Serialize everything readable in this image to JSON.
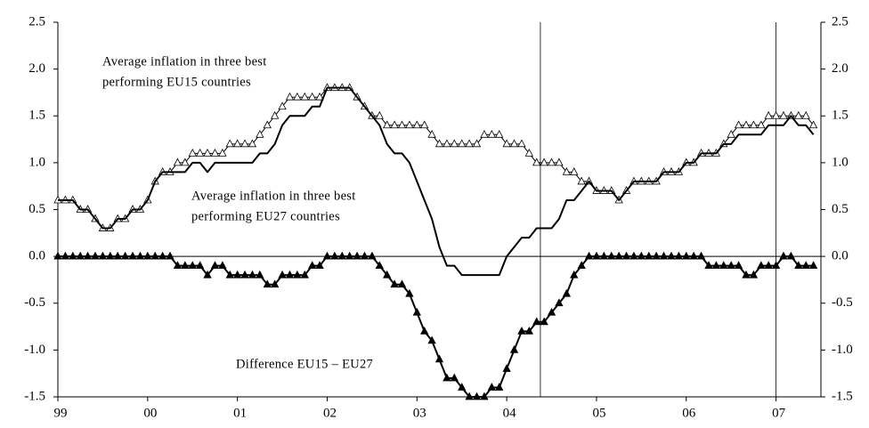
{
  "chart_data": {
    "type": "line",
    "x": [
      0,
      1,
      2,
      3,
      4,
      5,
      6,
      7,
      8,
      9,
      10,
      11,
      12,
      13,
      14,
      15,
      16,
      17,
      18,
      19,
      20,
      21,
      22,
      23,
      24,
      25,
      26,
      27,
      28,
      29,
      30,
      31,
      32,
      33,
      34,
      35,
      36,
      37,
      38,
      39,
      40,
      41,
      42,
      43,
      44,
      45,
      46,
      47,
      48,
      49,
      50,
      51,
      52,
      53,
      54,
      55,
      56,
      57,
      58,
      59,
      60,
      61,
      62,
      63,
      64,
      65,
      66,
      67,
      68,
      69,
      70,
      71,
      72,
      73,
      74,
      75,
      76,
      77,
      78,
      79,
      80,
      81,
      82,
      83,
      84,
      85,
      86,
      87,
      88,
      89,
      90,
      91,
      92,
      93,
      94,
      95,
      96,
      97,
      98,
      99,
      100,
      101
    ],
    "xlim": [
      0,
      102
    ],
    "xticks": [
      {
        "value": 0,
        "label": "99"
      },
      {
        "value": 12,
        "label": "00"
      },
      {
        "value": 24,
        "label": "01"
      },
      {
        "value": 36,
        "label": "02"
      },
      {
        "value": 48,
        "label": "03"
      },
      {
        "value": 60,
        "label": "04"
      },
      {
        "value": 72,
        "label": "05"
      },
      {
        "value": 84,
        "label": "06"
      },
      {
        "value": 96,
        "label": "07"
      }
    ],
    "ylim": [
      -1.5,
      2.5
    ],
    "yticks": [
      -1.5,
      {
        "value": -1,
        "label": "-1.0"
      },
      -0.5,
      {
        "value": 0,
        "label": "0.0"
      },
      0.5,
      {
        "value": 1,
        "label": "1.0"
      },
      1.5,
      {
        "value": 2,
        "label": "2.0"
      },
      2.5
    ],
    "y2lim": [
      -1.5,
      2.5
    ],
    "y2ticks": [
      -1.5,
      {
        "value": -1,
        "label": "-1.0"
      },
      -0.5,
      {
        "value": 0,
        "label": "0.0"
      },
      0.5,
      {
        "value": 1,
        "label": "1.0"
      },
      1.5,
      {
        "value": 2,
        "label": "2.0"
      },
      2.5
    ],
    "vlines": [
      64.5,
      96
    ],
    "series": [
      {
        "color": "#000000",
        "marker": "triangle-open",
        "width": 1,
        "values": [
          0.6,
          0.6,
          0.6,
          0.5,
          0.5,
          0.4,
          0.3,
          0.3,
          0.4,
          0.4,
          0.5,
          0.5,
          0.6,
          0.8,
          0.9,
          0.9,
          1.0,
          1.0,
          1.1,
          1.1,
          1.1,
          1.1,
          1.1,
          1.2,
          1.2,
          1.2,
          1.2,
          1.3,
          1.4,
          1.5,
          1.6,
          1.7,
          1.7,
          1.7,
          1.7,
          1.7,
          1.8,
          1.8,
          1.8,
          1.8,
          1.7,
          1.6,
          1.5,
          1.5,
          1.4,
          1.4,
          1.4,
          1.4,
          1.4,
          1.4,
          1.3,
          1.2,
          1.2,
          1.2,
          1.2,
          1.2,
          1.2,
          1.3,
          1.3,
          1.3,
          1.2,
          1.2,
          1.2,
          1.1,
          1.0,
          1.0,
          1.0,
          1.0,
          0.9,
          0.9,
          0.8,
          0.8,
          0.7,
          0.7,
          0.7,
          0.6,
          0.7,
          0.8,
          0.8,
          0.8,
          0.8,
          0.9,
          0.9,
          0.9,
          1.0,
          1.0,
          1.1,
          1.1,
          1.1,
          1.2,
          1.3,
          1.4,
          1.4,
          1.4,
          1.4,
          1.5,
          1.5,
          1.5,
          1.5,
          1.5,
          1.5,
          1.4
        ]
      },
      {
        "color": "#000000",
        "marker": "none",
        "width": 2,
        "values": [
          0.6,
          0.6,
          0.6,
          0.5,
          0.5,
          0.4,
          0.3,
          0.3,
          0.4,
          0.4,
          0.5,
          0.5,
          0.6,
          0.8,
          0.9,
          0.9,
          0.9,
          0.9,
          1.0,
          1.0,
          0.9,
          1.0,
          1.0,
          1.0,
          1.0,
          1.0,
          1.0,
          1.1,
          1.1,
          1.2,
          1.4,
          1.5,
          1.5,
          1.5,
          1.6,
          1.6,
          1.8,
          1.8,
          1.8,
          1.8,
          1.7,
          1.6,
          1.5,
          1.4,
          1.2,
          1.1,
          1.1,
          1.0,
          0.8,
          0.6,
          0.4,
          0.1,
          -0.1,
          -0.1,
          -0.2,
          -0.2,
          -0.2,
          -0.2,
          -0.2,
          -0.2,
          0.0,
          0.1,
          0.2,
          0.2,
          0.3,
          0.3,
          0.3,
          0.4,
          0.6,
          0.6,
          0.7,
          0.8,
          0.7,
          0.7,
          0.7,
          0.6,
          0.7,
          0.8,
          0.8,
          0.8,
          0.8,
          0.9,
          0.9,
          0.9,
          1.0,
          1.0,
          1.1,
          1.1,
          1.1,
          1.2,
          1.2,
          1.3,
          1.3,
          1.3,
          1.3,
          1.4,
          1.4,
          1.4,
          1.5,
          1.4,
          1.4,
          1.3
        ]
      },
      {
        "color": "#000000",
        "marker": "triangle-filled",
        "width": 2,
        "values": [
          0,
          0,
          0,
          0,
          0,
          0,
          0,
          0,
          0,
          0,
          0,
          0,
          0,
          0,
          0,
          0,
          -0.1,
          -0.1,
          -0.1,
          -0.1,
          -0.2,
          -0.1,
          -0.1,
          -0.2,
          -0.2,
          -0.2,
          -0.2,
          -0.2,
          -0.3,
          -0.3,
          -0.2,
          -0.2,
          -0.2,
          -0.2,
          -0.1,
          -0.1,
          0,
          0,
          0,
          0,
          0,
          0,
          0,
          -0.1,
          -0.2,
          -0.3,
          -0.3,
          -0.4,
          -0.6,
          -0.8,
          -0.9,
          -1.1,
          -1.3,
          -1.3,
          -1.4,
          -1.5,
          -1.5,
          -1.5,
          -1.4,
          -1.4,
          -1.2,
          -1.0,
          -0.8,
          -0.8,
          -0.7,
          -0.7,
          -0.6,
          -0.5,
          -0.4,
          -0.2,
          -0.1,
          0,
          0,
          0,
          0,
          0,
          0,
          0,
          0,
          0,
          0,
          0,
          0,
          0,
          0,
          0,
          0,
          -0.1,
          -0.1,
          -0.1,
          -0.1,
          -0.1,
          -0.2,
          -0.2,
          -0.1,
          -0.1,
          -0.1,
          0,
          0,
          -0.1,
          -0.1,
          -0.1
        ]
      }
    ],
    "annotations": [
      [
        "Average inflation in three best",
        "performing EU15 countries"
      ],
      [
        "Average inflation in three best",
        "performing EU27 countries"
      ],
      [
        "Difference EU15 – EU27"
      ]
    ]
  }
}
